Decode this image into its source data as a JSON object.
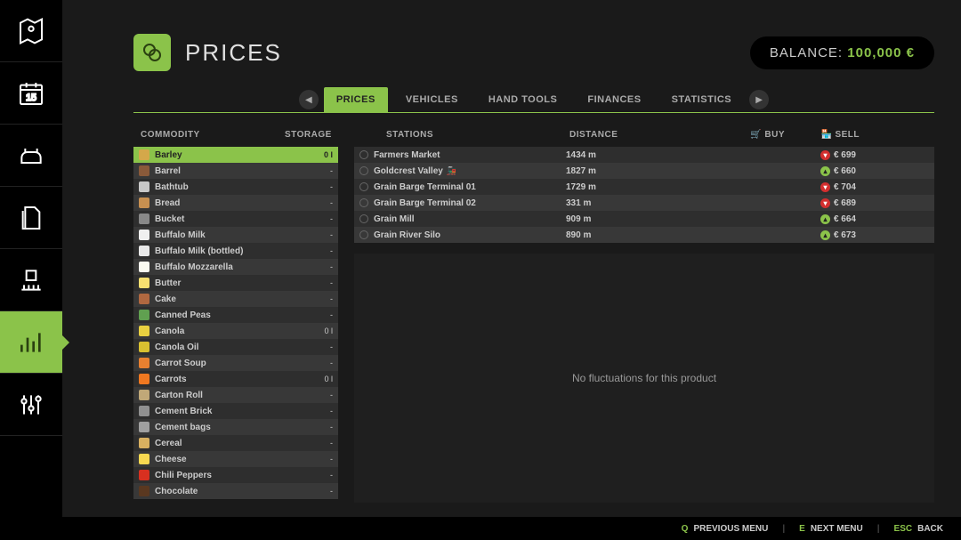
{
  "header": {
    "title": "PRICES",
    "balance_label": "BALANCE:",
    "balance_value": "100,000 €"
  },
  "tabs": [
    {
      "label": "PRICES",
      "active": true
    },
    {
      "label": "VEHICLES",
      "active": false
    },
    {
      "label": "HAND TOOLS",
      "active": false
    },
    {
      "label": "FINANCES",
      "active": false
    },
    {
      "label": "STATISTICS",
      "active": false
    }
  ],
  "columns": {
    "commodity": "COMMODITY",
    "storage": "STORAGE",
    "stations": "STATIONS",
    "distance": "DISTANCE",
    "buy": "BUY",
    "sell": "SELL"
  },
  "commodities": [
    {
      "name": "Barley",
      "storage": "0 l",
      "selected": true,
      "color": "#d4a84a"
    },
    {
      "name": "Barrel",
      "storage": "-",
      "color": "#8a5a3a"
    },
    {
      "name": "Bathtub",
      "storage": "-",
      "color": "#c8c8c8"
    },
    {
      "name": "Bread",
      "storage": "-",
      "color": "#c89050"
    },
    {
      "name": "Bucket",
      "storage": "-",
      "color": "#888"
    },
    {
      "name": "Buffalo Milk",
      "storage": "-",
      "color": "#f0f0f0"
    },
    {
      "name": "Buffalo Milk (bottled)",
      "storage": "-",
      "color": "#e8e8e8"
    },
    {
      "name": "Buffalo Mozzarella",
      "storage": "-",
      "color": "#fafaf0"
    },
    {
      "name": "Butter",
      "storage": "-",
      "color": "#f8e070"
    },
    {
      "name": "Cake",
      "storage": "-",
      "color": "#b06840"
    },
    {
      "name": "Canned Peas",
      "storage": "-",
      "color": "#60a050"
    },
    {
      "name": "Canola",
      "storage": "0 l",
      "color": "#e8d040"
    },
    {
      "name": "Canola Oil",
      "storage": "-",
      "color": "#d8c030"
    },
    {
      "name": "Carrot Soup",
      "storage": "-",
      "color": "#e88030"
    },
    {
      "name": "Carrots",
      "storage": "0 l",
      "color": "#f07820"
    },
    {
      "name": "Carton Roll",
      "storage": "-",
      "color": "#c0a878"
    },
    {
      "name": "Cement Brick",
      "storage": "-",
      "color": "#909090"
    },
    {
      "name": "Cement bags",
      "storage": "-",
      "color": "#a0a0a0"
    },
    {
      "name": "Cereal",
      "storage": "-",
      "color": "#d8b060"
    },
    {
      "name": "Cheese",
      "storage": "-",
      "color": "#f8d850"
    },
    {
      "name": "Chili Peppers",
      "storage": "-",
      "color": "#d83020"
    },
    {
      "name": "Chocolate",
      "storage": "-",
      "color": "#5a3820"
    }
  ],
  "stations": [
    {
      "name": "Farmers Market",
      "distance": "1434 m",
      "sell": "€ 699",
      "trend": "down",
      "extra": false
    },
    {
      "name": "Goldcrest Valley",
      "distance": "1827 m",
      "sell": "€ 660",
      "trend": "up",
      "extra": true
    },
    {
      "name": "Grain Barge Terminal 01",
      "distance": "1729 m",
      "sell": "€ 704",
      "trend": "down",
      "extra": false
    },
    {
      "name": "Grain Barge Terminal 02",
      "distance": "331 m",
      "sell": "€ 689",
      "trend": "down",
      "extra": false
    },
    {
      "name": "Grain Mill",
      "distance": "909 m",
      "sell": "€ 664",
      "trend": "up",
      "extra": false
    },
    {
      "name": "Grain River Silo",
      "distance": "890 m",
      "sell": "€ 673",
      "trend": "up",
      "extra": false
    }
  ],
  "fluctuation_message": "No fluctuations for this product",
  "footer": {
    "prev_key": "Q",
    "prev_label": "PREVIOUS MENU",
    "next_key": "E",
    "next_label": "NEXT MENU",
    "back_key": "ESC",
    "back_label": "BACK"
  },
  "sidebar_icons": [
    "map",
    "calendar",
    "animals",
    "documents",
    "equipment",
    "stats",
    "settings"
  ],
  "sidebar_active_index": 5
}
